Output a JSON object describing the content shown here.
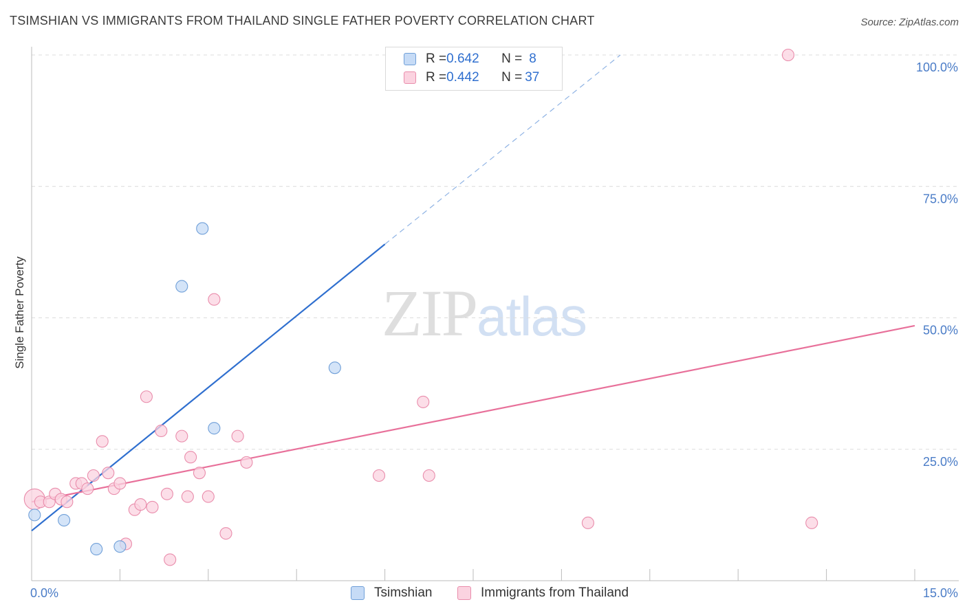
{
  "title": "TSIMSHIAN VS IMMIGRANTS FROM THAILAND SINGLE FATHER POVERTY CORRELATION CHART",
  "source": "Source: ZipAtlas.com",
  "watermark": {
    "zip": "ZIP",
    "atlas": "atlas"
  },
  "legend": {
    "rows": [
      {
        "r_label": "R = ",
        "r_value": "0.642",
        "n_label": "N = ",
        "n_value": "8",
        "color": "#b9d3f5",
        "border": "#6f9fd8"
      },
      {
        "r_label": "R = ",
        "r_value": "0.442",
        "n_label": "N = ",
        "n_value": "37",
        "color": "#f9c9d8",
        "border": "#e98cab"
      }
    ]
  },
  "bottom_legend": {
    "tsimshian": "Tsimshian",
    "thailand": "Immigrants from Thailand"
  },
  "chart_data": {
    "type": "scatter",
    "title": "TSIMSHIAN VS IMMIGRANTS FROM THAILAND SINGLE FATHER POVERTY CORRELATION CHART",
    "xlabel": "",
    "ylabel": "Single Father Poverty",
    "xlim": [
      0,
      15
    ],
    "ylim": [
      0,
      100
    ],
    "x_tick_labels": [
      "0.0%",
      "15.0%"
    ],
    "y_ticks": [
      25,
      50,
      75,
      100
    ],
    "y_tick_labels": [
      "25.0%",
      "50.0%",
      "75.0%",
      "100.0%"
    ],
    "series": [
      {
        "name": "Tsimshian",
        "color": "#6f9fd8",
        "fill": "#c6dbf6",
        "line_color": "#2f6fcf",
        "points": [
          {
            "x": 0.05,
            "y": 12.5
          },
          {
            "x": 0.55,
            "y": 11.5
          },
          {
            "x": 1.1,
            "y": 6.0
          },
          {
            "x": 1.5,
            "y": 6.5
          },
          {
            "x": 2.55,
            "y": 56.0
          },
          {
            "x": 2.9,
            "y": 67.0
          },
          {
            "x": 3.1,
            "y": 29.0
          },
          {
            "x": 5.15,
            "y": 40.5
          }
        ],
        "trend": {
          "x0": 0,
          "y0": 9.5,
          "x1": 6.0,
          "y1": 64.0,
          "dash_x1": 10.0,
          "dash_y1": 100.0
        }
      },
      {
        "name": "Immigrants from Thailand",
        "color": "#e98cab",
        "fill": "#fbd3e0",
        "line_color": "#e8709a",
        "points": [
          {
            "x": 0.05,
            "y": 15.5,
            "size": "large"
          },
          {
            "x": 0.15,
            "y": 15.0
          },
          {
            "x": 0.3,
            "y": 15.0
          },
          {
            "x": 0.4,
            "y": 16.5
          },
          {
            "x": 0.5,
            "y": 15.5
          },
          {
            "x": 0.6,
            "y": 15.0
          },
          {
            "x": 0.75,
            "y": 18.5
          },
          {
            "x": 0.85,
            "y": 18.5
          },
          {
            "x": 0.95,
            "y": 17.5
          },
          {
            "x": 1.05,
            "y": 20.0
          },
          {
            "x": 1.2,
            "y": 26.5
          },
          {
            "x": 1.3,
            "y": 20.5
          },
          {
            "x": 1.4,
            "y": 17.5
          },
          {
            "x": 1.5,
            "y": 18.5
          },
          {
            "x": 1.6,
            "y": 7.0
          },
          {
            "x": 1.75,
            "y": 13.5
          },
          {
            "x": 1.85,
            "y": 14.5
          },
          {
            "x": 1.95,
            "y": 35.0
          },
          {
            "x": 2.05,
            "y": 14.0
          },
          {
            "x": 2.2,
            "y": 28.5
          },
          {
            "x": 2.3,
            "y": 16.5
          },
          {
            "x": 2.35,
            "y": 4.0
          },
          {
            "x": 2.55,
            "y": 27.5
          },
          {
            "x": 2.65,
            "y": 16.0
          },
          {
            "x": 2.7,
            "y": 23.5
          },
          {
            "x": 2.85,
            "y": 20.5
          },
          {
            "x": 3.0,
            "y": 16.0
          },
          {
            "x": 3.1,
            "y": 53.5
          },
          {
            "x": 3.3,
            "y": 9.0
          },
          {
            "x": 3.5,
            "y": 27.5
          },
          {
            "x": 3.65,
            "y": 22.5
          },
          {
            "x": 5.9,
            "y": 20.0
          },
          {
            "x": 6.65,
            "y": 34.0
          },
          {
            "x": 6.75,
            "y": 20.0
          },
          {
            "x": 9.45,
            "y": 11.0
          },
          {
            "x": 12.85,
            "y": 100.0
          },
          {
            "x": 13.25,
            "y": 11.0
          }
        ],
        "trend": {
          "x0": 0,
          "y0": 15.0,
          "x1": 15.0,
          "y1": 48.5
        }
      }
    ]
  }
}
